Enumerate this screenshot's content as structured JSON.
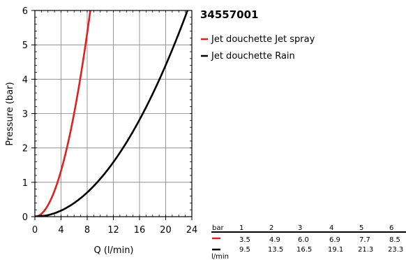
{
  "product_code": "34557001",
  "legend": [
    {
      "label": "Jet douchette Jet spray",
      "color": "#e02020"
    },
    {
      "label": "Jet douchette Rain",
      "color": "#000000"
    }
  ],
  "table": {
    "pressure_label": "bar",
    "flow_label": "l/min",
    "pressures": [
      "1",
      "2",
      "3",
      "4",
      "5",
      "6"
    ],
    "rows": [
      {
        "series": "Jet douchette Jet spray",
        "color": "#e02020",
        "values": [
          "3.5",
          "4.9",
          "6.0",
          "6.9",
          "7.7",
          "8.5"
        ]
      },
      {
        "series": "Jet douchette Rain",
        "color": "#000000",
        "values": [
          "9.5",
          "13.5",
          "16.5",
          "19.1",
          "21.3",
          "23.3"
        ]
      }
    ]
  },
  "chart_data": {
    "type": "line",
    "title": "34557001",
    "xlabel": "Q (l/min)",
    "ylabel": "Pressure (bar)",
    "xlim": [
      0,
      24
    ],
    "ylim": [
      0,
      6
    ],
    "xticks": [
      "0",
      "4",
      "8",
      "12",
      "16",
      "20",
      "24"
    ],
    "yticks": [
      "0",
      "1",
      "2",
      "3",
      "4",
      "5",
      "6"
    ],
    "grid": true,
    "legend_position": "right",
    "series": [
      {
        "name": "Jet douchette Jet spray",
        "color": "#e02020",
        "x": [
          0,
          3.5,
          4.9,
          6.0,
          6.9,
          7.7,
          8.5
        ],
        "y": [
          0,
          1,
          2,
          3,
          4,
          5,
          6
        ]
      },
      {
        "name": "Jet douchette Rain",
        "color": "#000000",
        "x": [
          0,
          9.5,
          13.5,
          16.5,
          19.1,
          21.3,
          23.3
        ],
        "y": [
          0,
          1,
          2,
          3,
          4,
          5,
          6
        ]
      }
    ]
  }
}
